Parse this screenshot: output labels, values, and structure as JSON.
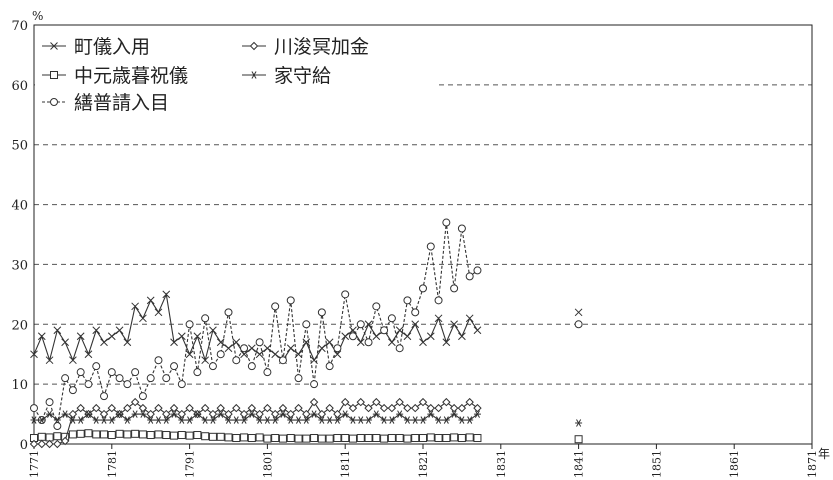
{
  "chart_data": {
    "type": "line",
    "ylabel": "%",
    "xlabel": "年",
    "ylim": [
      0,
      70
    ],
    "xlim": [
      1771,
      1871
    ],
    "yticks": [
      0,
      10,
      20,
      30,
      40,
      50,
      60,
      70
    ],
    "xticks": [
      1771,
      1781,
      1791,
      1801,
      1811,
      1821,
      1831,
      1841,
      1851,
      1861,
      1871
    ],
    "grid": "horizontal-dashed",
    "legend_position": "top-left",
    "series": [
      {
        "name": "町儀入用",
        "marker": "x",
        "line": "solid",
        "x": [
          1771,
          1772,
          1773,
          1774,
          1775,
          1776,
          1777,
          1778,
          1779,
          1780,
          1781,
          1782,
          1783,
          1784,
          1785,
          1786,
          1787,
          1788,
          1789,
          1790,
          1791,
          1792,
          1793,
          1794,
          1795,
          1796,
          1797,
          1798,
          1799,
          1800,
          1801,
          1802,
          1803,
          1804,
          1805,
          1806,
          1807,
          1808,
          1809,
          1810,
          1811,
          1812,
          1813,
          1814,
          1815,
          1816,
          1817,
          1818,
          1819,
          1820,
          1821,
          1822,
          1823,
          1824,
          1825,
          1826,
          1827,
          1828,
          1841
        ],
        "y": [
          15,
          18,
          14,
          19,
          17,
          14,
          18,
          15,
          19,
          17,
          18,
          19,
          17,
          23,
          21,
          24,
          22,
          25,
          17,
          18,
          15,
          18,
          14,
          19,
          17,
          16,
          17,
          15,
          16,
          15,
          16,
          15,
          14,
          16,
          15,
          17,
          14,
          16,
          17,
          15,
          18,
          19,
          17,
          20,
          18,
          19,
          17,
          19,
          18,
          20,
          17,
          18,
          21,
          17,
          20,
          18,
          21,
          19,
          22
        ]
      },
      {
        "name": "中元歳暮祝儀",
        "marker": "square",
        "line": "solid",
        "x": [
          1771,
          1772,
          1773,
          1774,
          1775,
          1776,
          1777,
          1778,
          1779,
          1780,
          1781,
          1782,
          1783,
          1784,
          1785,
          1786,
          1787,
          1788,
          1789,
          1790,
          1791,
          1792,
          1793,
          1794,
          1795,
          1796,
          1797,
          1798,
          1799,
          1800,
          1801,
          1802,
          1803,
          1804,
          1805,
          1806,
          1807,
          1808,
          1809,
          1810,
          1811,
          1812,
          1813,
          1814,
          1815,
          1816,
          1817,
          1818,
          1819,
          1820,
          1821,
          1822,
          1823,
          1824,
          1825,
          1826,
          1827,
          1828,
          1841
        ],
        "y": [
          1.0,
          1.2,
          1.1,
          1.3,
          1.2,
          1.6,
          1.7,
          1.8,
          1.6,
          1.6,
          1.5,
          1.7,
          1.6,
          1.7,
          1.6,
          1.5,
          1.6,
          1.5,
          1.4,
          1.5,
          1.4,
          1.5,
          1.3,
          1.2,
          1.2,
          1.1,
          1.0,
          1.1,
          1.0,
          1.1,
          0.9,
          1.0,
          0.9,
          1.0,
          0.9,
          0.9,
          1.0,
          0.9,
          0.9,
          1.0,
          1.0,
          0.9,
          1.0,
          1.0,
          1.0,
          0.9,
          1.0,
          1.0,
          0.9,
          1.0,
          1.0,
          1.1,
          1.0,
          1.0,
          1.1,
          1.0,
          1.1,
          1.0,
          0.8
        ]
      },
      {
        "name": "繕普請入目",
        "marker": "circle",
        "line": "dashed",
        "x": [
          1771,
          1772,
          1773,
          1774,
          1775,
          1776,
          1777,
          1778,
          1779,
          1780,
          1781,
          1782,
          1783,
          1784,
          1785,
          1786,
          1787,
          1788,
          1789,
          1790,
          1791,
          1792,
          1793,
          1794,
          1795,
          1796,
          1797,
          1798,
          1799,
          1800,
          1801,
          1802,
          1803,
          1804,
          1805,
          1806,
          1807,
          1808,
          1809,
          1810,
          1811,
          1812,
          1813,
          1814,
          1815,
          1816,
          1817,
          1818,
          1819,
          1820,
          1821,
          1822,
          1823,
          1824,
          1825,
          1826,
          1827,
          1828,
          1841
        ],
        "y": [
          6,
          4,
          7,
          3,
          11,
          9,
          12,
          10,
          13,
          8,
          12,
          11,
          10,
          12,
          8,
          11,
          14,
          11,
          13,
          10,
          20,
          12,
          21,
          13,
          15,
          22,
          14,
          16,
          13,
          17,
          12,
          23,
          14,
          24,
          11,
          20,
          10,
          22,
          13,
          16,
          25,
          18,
          20,
          17,
          23,
          19,
          21,
          16,
          24,
          22,
          26,
          33,
          24,
          37,
          26,
          36,
          28,
          29,
          20
        ]
      },
      {
        "name": "川浚冥加金",
        "marker": "diamond",
        "line": "solid",
        "x": [
          1771,
          1772,
          1773,
          1774,
          1775,
          1776,
          1777,
          1778,
          1779,
          1780,
          1781,
          1782,
          1783,
          1784,
          1785,
          1786,
          1787,
          1788,
          1789,
          1790,
          1791,
          1792,
          1793,
          1794,
          1795,
          1796,
          1797,
          1798,
          1799,
          1800,
          1801,
          1802,
          1803,
          1804,
          1805,
          1806,
          1807,
          1808,
          1809,
          1810,
          1811,
          1812,
          1813,
          1814,
          1815,
          1816,
          1817,
          1818,
          1819,
          1820,
          1821,
          1822,
          1823,
          1824,
          1825,
          1826,
          1827,
          1828
        ],
        "y": [
          0,
          0,
          0,
          0,
          0.5,
          5,
          6,
          5,
          6,
          5,
          6,
          5,
          6,
          7,
          6,
          5,
          6,
          5,
          6,
          5,
          6,
          5,
          6,
          5,
          6,
          5,
          6,
          5,
          6,
          5,
          6,
          5,
          6,
          5,
          6,
          5,
          7,
          5,
          6,
          5,
          7,
          6,
          7,
          6,
          7,
          6,
          6,
          7,
          6,
          6,
          7,
          6,
          6,
          7,
          6,
          6,
          7,
          6
        ]
      },
      {
        "name": "家守給",
        "marker": "asterisk",
        "line": "solid",
        "x": [
          1771,
          1772,
          1773,
          1774,
          1775,
          1776,
          1777,
          1778,
          1779,
          1780,
          1781,
          1782,
          1783,
          1784,
          1785,
          1786,
          1787,
          1788,
          1789,
          1790,
          1791,
          1792,
          1793,
          1794,
          1795,
          1796,
          1797,
          1798,
          1799,
          1800,
          1801,
          1802,
          1803,
          1804,
          1805,
          1806,
          1807,
          1808,
          1809,
          1810,
          1811,
          1812,
          1813,
          1814,
          1815,
          1816,
          1817,
          1818,
          1819,
          1820,
          1821,
          1822,
          1823,
          1824,
          1825,
          1826,
          1827,
          1828,
          1841
        ],
        "y": [
          4,
          4,
          5,
          4,
          5,
          4,
          4,
          5,
          4,
          4,
          4,
          5,
          4,
          5,
          5,
          4,
          4,
          4,
          5,
          4,
          4,
          5,
          4,
          4,
          5,
          4,
          4,
          4,
          5,
          4,
          4,
          4,
          5,
          4,
          4,
          4,
          5,
          4,
          4,
          4,
          5,
          4,
          4,
          4,
          5,
          4,
          4,
          5,
          4,
          4,
          4,
          5,
          4,
          4,
          5,
          4,
          4,
          5,
          3.5
        ]
      }
    ]
  }
}
